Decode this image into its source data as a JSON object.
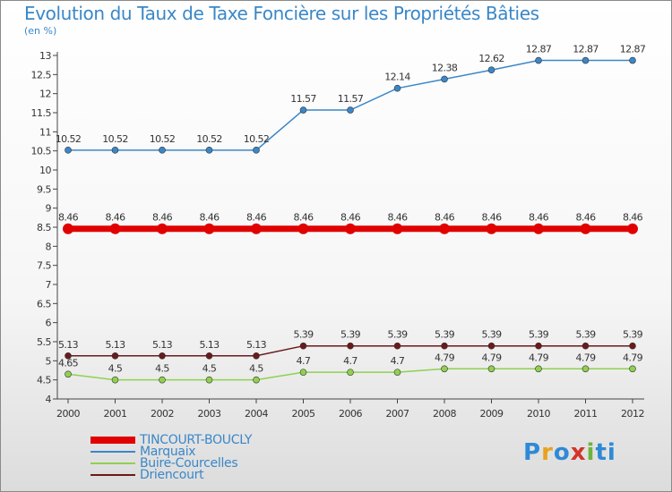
{
  "title": "Evolution du Taux de Taxe Foncière sur les Propriétés Bâties",
  "subtitle": "(en %)",
  "logo": "Proxiti",
  "chart_data": {
    "type": "line",
    "x": [
      "2000",
      "2001",
      "2002",
      "2003",
      "2004",
      "2005",
      "2006",
      "2007",
      "2008",
      "2009",
      "2010",
      "2011",
      "2012"
    ],
    "ylim": [
      4,
      13
    ],
    "yticks": [
      "4",
      "4.5",
      "5",
      "5.5",
      "6",
      "6.5",
      "7",
      "7.5",
      "8",
      "8.5",
      "9",
      "9.5",
      "10",
      "10.5",
      "11",
      "11.5",
      "12",
      "12.5",
      "13"
    ],
    "grid": false,
    "legend_position": "bottom-left",
    "series": [
      {
        "name": "TINCOURT-BOUCLY",
        "color": "#e00000",
        "values": [
          8.46,
          8.46,
          8.46,
          8.46,
          8.46,
          8.46,
          8.46,
          8.46,
          8.46,
          8.46,
          8.46,
          8.46,
          8.46
        ],
        "labels": [
          "8.46",
          "8.46",
          "8.46",
          "8.46",
          "8.46",
          "8.46",
          "8.46",
          "8.46",
          "8.46",
          "8.46",
          "8.46",
          "8.46",
          "8.46"
        ]
      },
      {
        "name": "Marquaix",
        "color": "#3a87c8",
        "values": [
          10.52,
          10.52,
          10.52,
          10.52,
          10.52,
          11.57,
          11.57,
          12.14,
          12.38,
          12.62,
          12.87,
          12.87,
          12.87
        ],
        "labels": [
          "10.52",
          "10.52",
          "10.52",
          "10.52",
          "10.52",
          "11.57",
          "11.57",
          "12.14",
          "12.38",
          "12.62",
          "12.87",
          "12.87",
          "12.87"
        ]
      },
      {
        "name": "Buire-Courcelles",
        "color": "#8fd14f",
        "values": [
          4.65,
          4.5,
          4.5,
          4.5,
          4.5,
          4.7,
          4.7,
          4.7,
          4.79,
          4.79,
          4.79,
          4.79,
          4.79
        ],
        "labels": [
          "4.65",
          "4.5",
          "4.5",
          "4.5",
          "4.5",
          "4.7",
          "4.7",
          "4.7",
          "4.79",
          "4.79",
          "4.79",
          "4.79",
          "4.79"
        ]
      },
      {
        "name": "Driencourt",
        "color": "#6b1a1a",
        "values": [
          5.13,
          5.13,
          5.13,
          5.13,
          5.13,
          5.39,
          5.39,
          5.39,
          5.39,
          5.39,
          5.39,
          5.39,
          5.39
        ],
        "labels": [
          "5.13",
          "5.13",
          "5.13",
          "5.13",
          "5.13",
          "5.39",
          "5.39",
          "5.39",
          "5.39",
          "5.39",
          "5.39",
          "5.39",
          "5.39"
        ]
      }
    ]
  }
}
